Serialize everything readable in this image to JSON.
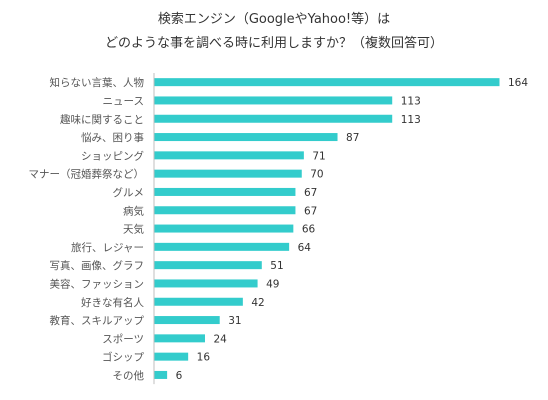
{
  "chart_data": {
    "type": "bar",
    "orientation": "horizontal",
    "title": [
      "検索エンジン（GoogleやYahoo!等）は",
      "どのような事を調べる時に利用しますか？（複数回答可）"
    ],
    "categories": [
      "知らない言葉、人物",
      "ニュース",
      "趣味に関すること",
      "悩み、困り事",
      "ショッピング",
      "マナー（冠婚葬祭など）",
      "グルメ",
      "病気",
      "天気",
      "旅行、レジャー",
      "写真、画像、グラフ",
      "美容、ファッション",
      "好きな有名人",
      "教育、スキルアップ",
      "スポーツ",
      "ゴシップ",
      "その他"
    ],
    "values": [
      164,
      113,
      113,
      87,
      71,
      70,
      67,
      67,
      66,
      64,
      51,
      49,
      42,
      31,
      24,
      16,
      6
    ],
    "bar_color": "#33cccc",
    "axis_color": "#bfbfbf",
    "grid": false,
    "xlim": [
      0,
      164
    ]
  }
}
